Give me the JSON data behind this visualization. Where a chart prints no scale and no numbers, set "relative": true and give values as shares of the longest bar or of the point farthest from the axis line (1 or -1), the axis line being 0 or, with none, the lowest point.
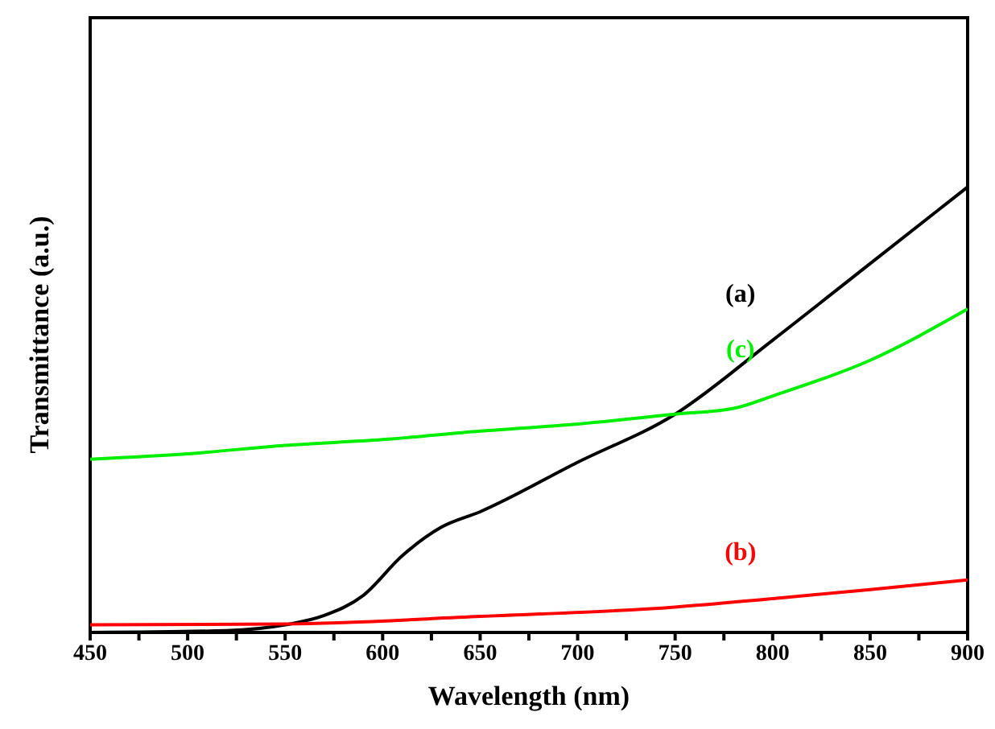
{
  "chart_data": {
    "type": "line",
    "xlabel": "Wavelength (nm)",
    "ylabel": "Transmittance (a.u.)",
    "relative": true,
    "xlim": [
      450,
      900
    ],
    "xticks": [
      450,
      {
        "value": 475,
        "label": null
      },
      500,
      {
        "value": 525,
        "label": null
      },
      550,
      {
        "value": 575,
        "label": null
      },
      600,
      {
        "value": 625,
        "label": null
      },
      650,
      {
        "value": 675,
        "label": null
      },
      700,
      {
        "value": 725,
        "label": null
      },
      750,
      {
        "value": 775,
        "label": null
      },
      800,
      {
        "value": 825,
        "label": null
      },
      850,
      {
        "value": 875,
        "label": null
      },
      900
    ],
    "marker": "none",
    "line_style": "solid",
    "series": [
      {
        "name": "(a)",
        "color": "#000000",
        "x": [
          450,
          520,
          550,
          570,
          590,
          610,
          630,
          650,
          700,
          750,
          800,
          850,
          900
        ],
        "values": [
          0,
          0.004,
          0.017,
          0.038,
          0.083,
          0.172,
          0.236,
          0.271,
          0.382,
          0.49,
          0.656,
          0.828,
          1
        ]
      },
      {
        "name": "(b)",
        "color": "#ff0000",
        "x": [
          450,
          550,
          650,
          750,
          800,
          850,
          900
        ],
        "values": [
          0.017,
          0.019,
          0.036,
          0.057,
          0.076,
          0.096,
          0.118
        ]
      },
      {
        "name": "(c)",
        "color": "#00ee00",
        "x": [
          450,
          500,
          550,
          600,
          650,
          700,
          750,
          780,
          800,
          850,
          900
        ],
        "values": [
          0.389,
          0.401,
          0.42,
          0.433,
          0.452,
          0.468,
          0.49,
          0.503,
          0.531,
          0.611,
          0.726
        ]
      }
    ]
  }
}
